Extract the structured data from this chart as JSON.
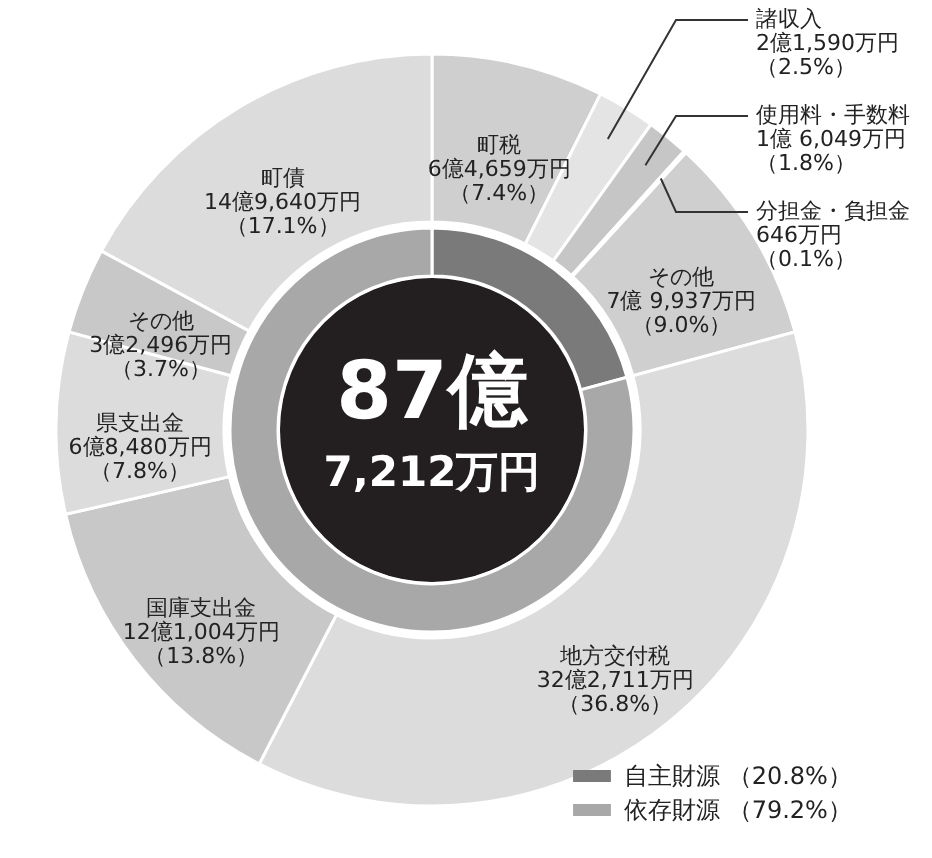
{
  "chart_data": [
    {
      "type": "donut",
      "categories": [
        "町税",
        "諸収入",
        "使用料・手数料",
        "分担金・負担金",
        "その他",
        "地方交付税",
        "国庫支出金",
        "県支出金",
        "その他",
        "町債"
      ],
      "values": [
        7.4,
        2.5,
        1.8,
        0.1,
        9.0,
        36.8,
        13.8,
        7.8,
        3.7,
        17.1
      ],
      "colors": [
        "#cfcfcf",
        "#e4e4e4",
        "#c6c6c6",
        "#dadada",
        "#cfcfcf",
        "#dcdcdc",
        "#c8c8c8",
        "#dcdcdc",
        "#c8c8c8",
        "#dcdcdc"
      ],
      "value_labels": [
        "6億4,659万円（7.4%）",
        "2億1,590万円（2.5%）",
        "1億 6,049万円（1.8%）",
        "646万円（0.1%）",
        "7億 9,937万円（9.0%）",
        "32億2,711万円（36.8%）",
        "12億1,004万円（13.8%）",
        "6億8,480万円（7.8%）",
        "3億2,496万円（3.7%）",
        "14億9,640万円（17.1%）"
      ]
    },
    {
      "type": "donut",
      "title": "87億",
      "subtitle": "7,212万円",
      "categories": [
        "自主財源",
        "依存財源"
      ],
      "values": [
        20.8,
        79.2
      ],
      "colors": [
        "#7a7a7a",
        "#a8a8a8"
      ],
      "value_labels": [
        "（20.8%）",
        "（79.2%）"
      ],
      "legend": "bottom right"
    }
  ]
}
